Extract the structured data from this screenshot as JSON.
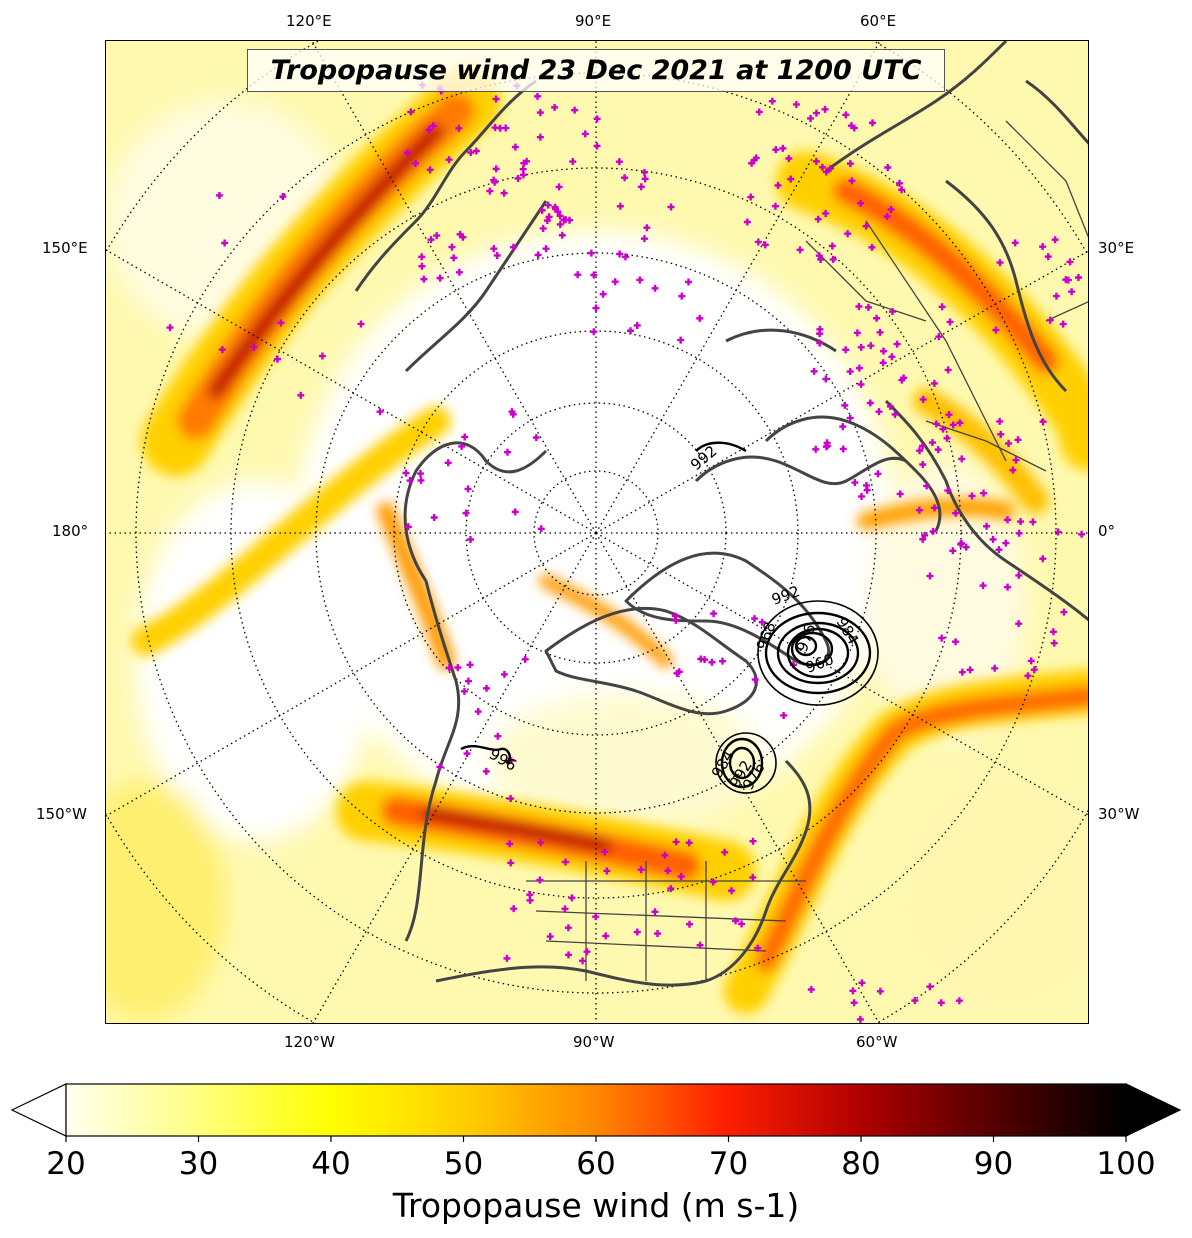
{
  "title": "Tropopause wind 23 Dec 2021 at 1200 UTC",
  "axes": {
    "top_ticks": [
      "120°E",
      "90°E",
      "60°E"
    ],
    "bottom_ticks": [
      "120°W",
      "90°W",
      "60°W"
    ],
    "left_ticks": [
      "150°E",
      "180°",
      "150°W"
    ],
    "right_ticks": [
      "30°E",
      "0°",
      "30°W"
    ]
  },
  "colorbar": {
    "label": "Tropopause wind (m s-1)",
    "ticks": [
      "20",
      "30",
      "40",
      "50",
      "60",
      "70",
      "80",
      "90",
      "100"
    ],
    "min": 20,
    "max": 100,
    "extend": "both",
    "colormap": [
      "#fffff0",
      "#ffff80",
      "#ffff00",
      "#ffd700",
      "#ff9900",
      "#ff4400",
      "#e00000",
      "#990000",
      "#330000",
      "#000000"
    ]
  },
  "contours": {
    "color": "#000000",
    "labels": [
      "992",
      "984",
      "976",
      "968",
      "960",
      "976",
      "992",
      "984",
      "992",
      "996"
    ]
  },
  "stations": {
    "marker": "+",
    "color": "#cc00cc"
  },
  "coastline_color": "#444444"
}
